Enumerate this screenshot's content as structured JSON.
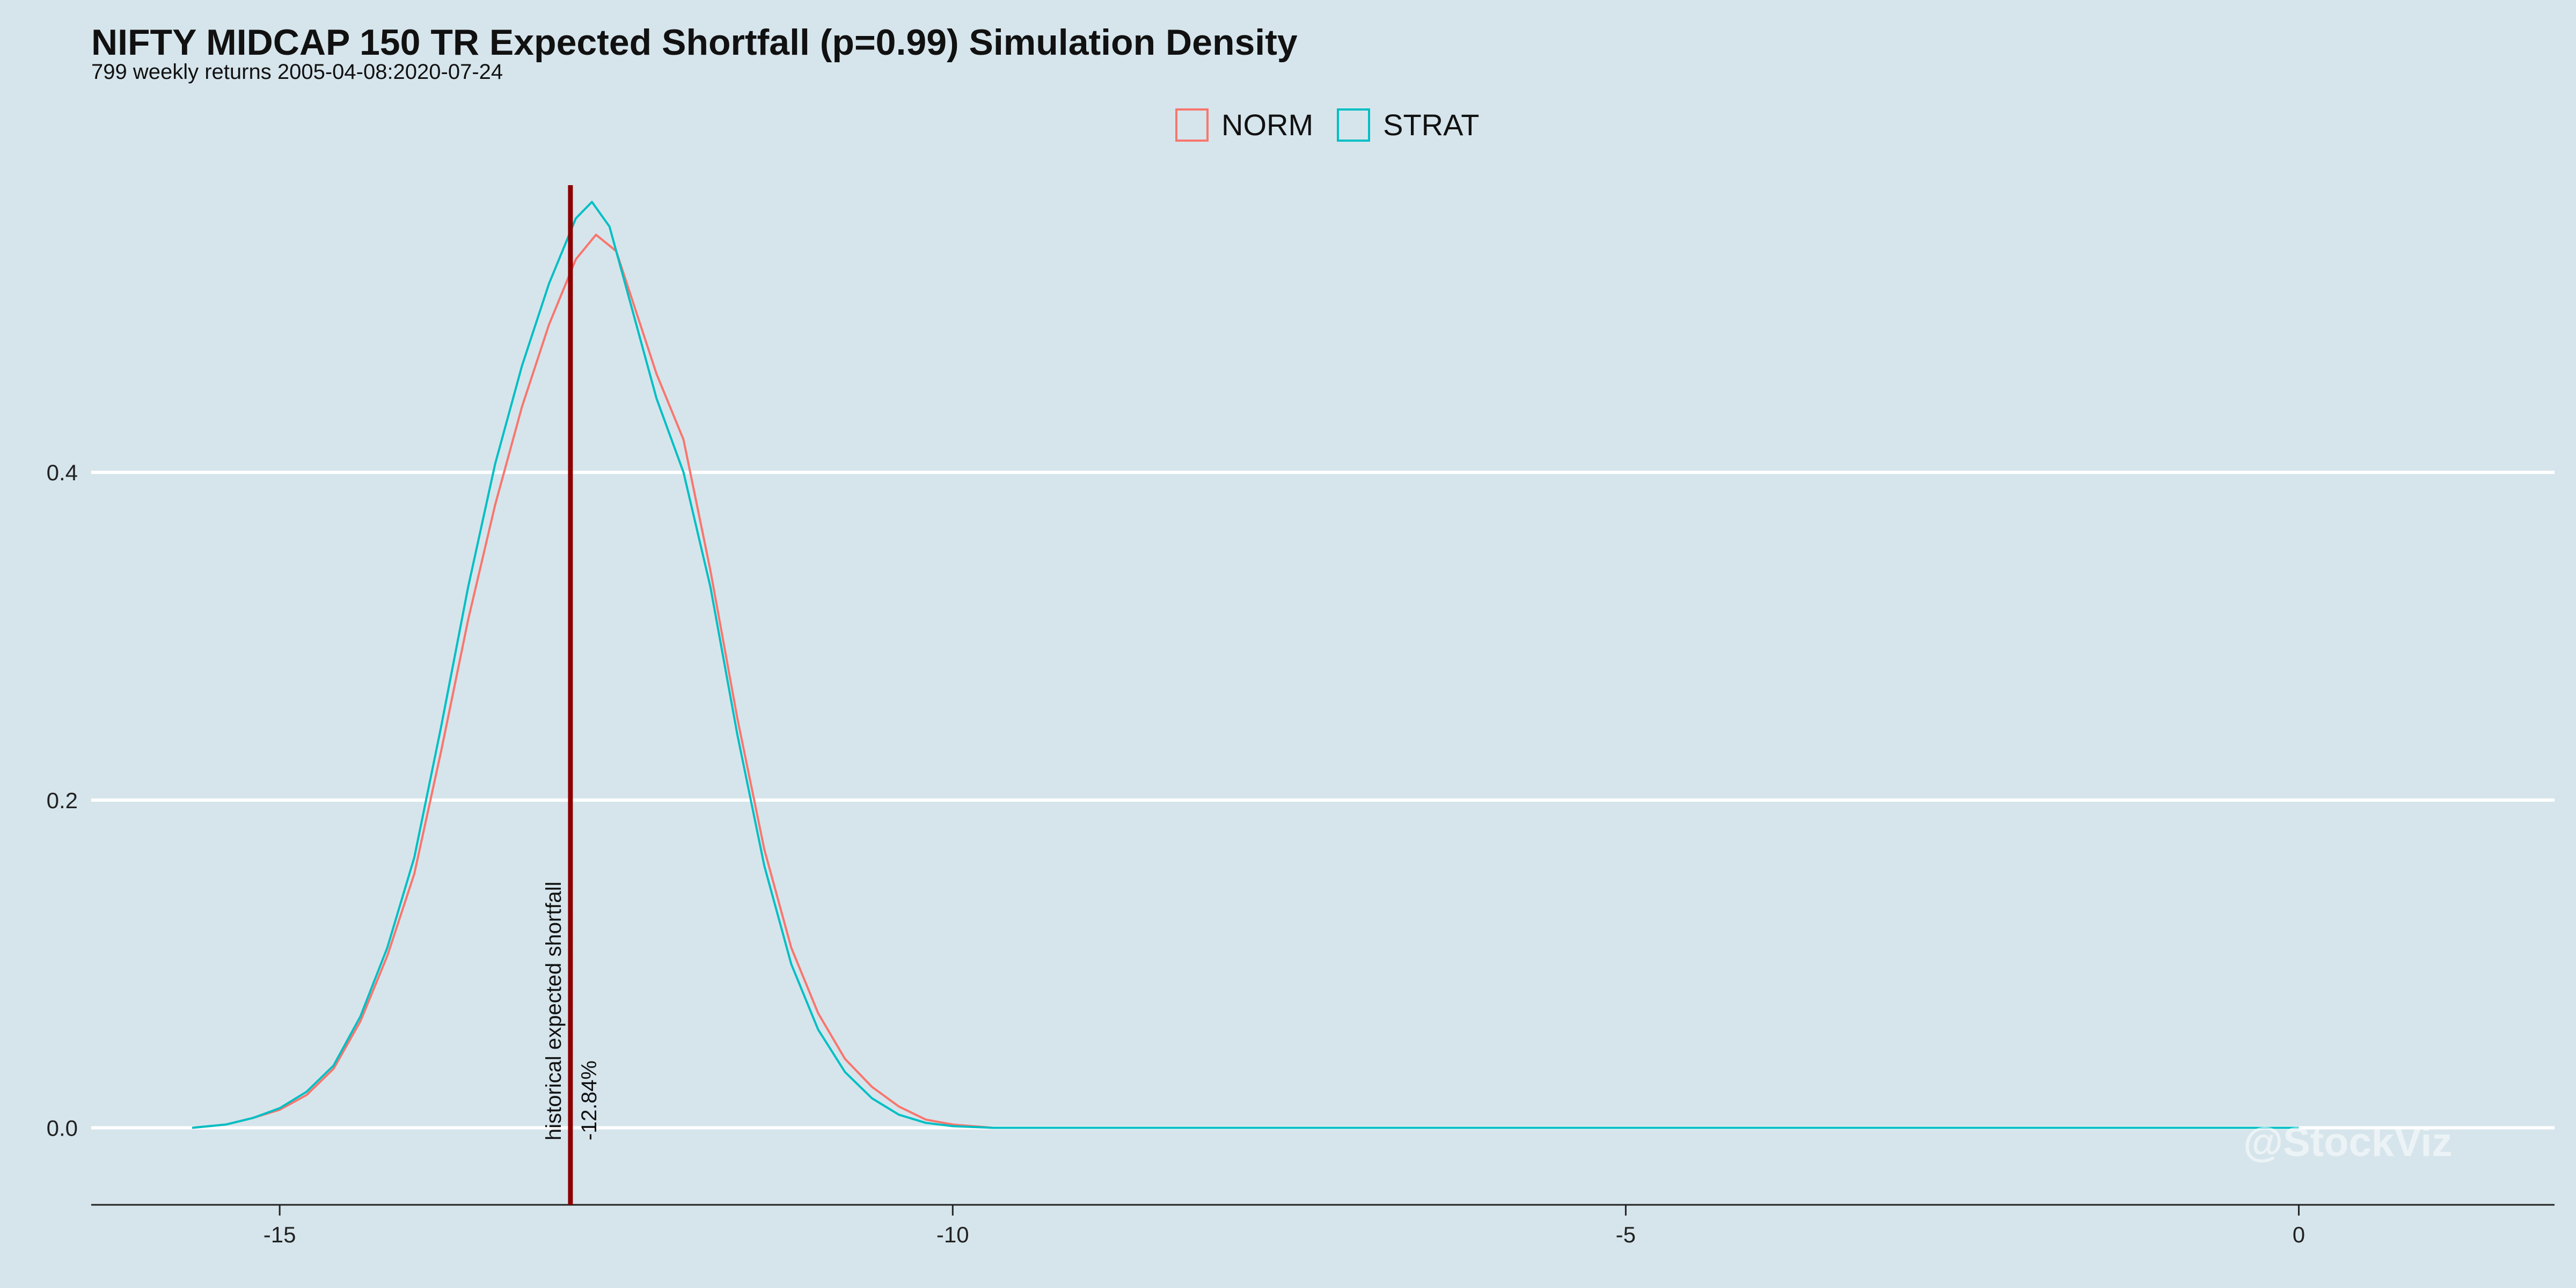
{
  "title": "NIFTY MIDCAP 150 TR Expected Shortfall (p=0.99) Simulation Density",
  "subtitle": "799 weekly returns 2005-04-08:2020-07-24",
  "watermark": "@StockViz",
  "chart_data": {
    "type": "line",
    "xlim": [
      -16.4,
      1.9
    ],
    "ylim": [
      -0.047,
      0.59
    ],
    "x_ticks": [
      -15,
      -10,
      -5,
      0
    ],
    "x_tick_labels": [
      "-15",
      "-10",
      "-5",
      "0"
    ],
    "y_ticks": [
      0.0,
      0.2,
      0.4
    ],
    "y_tick_labels": [
      "0.0",
      "0.2",
      "0.4"
    ],
    "grid": "horizontal-major",
    "legend_position": "top",
    "annotation": {
      "x": -12.84,
      "label": "historical expected shortfall",
      "value_label": "-12.84%",
      "color": "#8b0000"
    },
    "series": [
      {
        "name": "NORM",
        "color": "#f8766d",
        "points": [
          [
            -15.65,
            0.0
          ],
          [
            -15.4,
            0.002
          ],
          [
            -15.2,
            0.006
          ],
          [
            -15.0,
            0.011
          ],
          [
            -14.8,
            0.02
          ],
          [
            -14.6,
            0.036
          ],
          [
            -14.4,
            0.065
          ],
          [
            -14.2,
            0.105
          ],
          [
            -14.0,
            0.155
          ],
          [
            -13.8,
            0.23
          ],
          [
            -13.6,
            0.31
          ],
          [
            -13.4,
            0.38
          ],
          [
            -13.2,
            0.44
          ],
          [
            -13.0,
            0.49
          ],
          [
            -12.8,
            0.53
          ],
          [
            -12.65,
            0.545
          ],
          [
            -12.5,
            0.535
          ],
          [
            -12.4,
            0.51
          ],
          [
            -12.2,
            0.46
          ],
          [
            -12.0,
            0.42
          ],
          [
            -11.8,
            0.34
          ],
          [
            -11.6,
            0.25
          ],
          [
            -11.4,
            0.17
          ],
          [
            -11.2,
            0.11
          ],
          [
            -11.0,
            0.07
          ],
          [
            -10.8,
            0.042
          ],
          [
            -10.6,
            0.025
          ],
          [
            -10.4,
            0.013
          ],
          [
            -10.2,
            0.005
          ],
          [
            -10.0,
            0.002
          ],
          [
            -9.7,
            0.0
          ],
          [
            -8.0,
            0.0
          ],
          [
            -5.0,
            0.0
          ],
          [
            -2.0,
            0.0
          ],
          [
            0.0,
            0.0
          ]
        ]
      },
      {
        "name": "STRAT",
        "color": "#00bfc4",
        "points": [
          [
            -15.65,
            0.0
          ],
          [
            -15.4,
            0.002
          ],
          [
            -15.2,
            0.006
          ],
          [
            -15.0,
            0.012
          ],
          [
            -14.8,
            0.022
          ],
          [
            -14.6,
            0.038
          ],
          [
            -14.4,
            0.068
          ],
          [
            -14.2,
            0.11
          ],
          [
            -14.0,
            0.165
          ],
          [
            -13.8,
            0.245
          ],
          [
            -13.6,
            0.33
          ],
          [
            -13.4,
            0.405
          ],
          [
            -13.2,
            0.465
          ],
          [
            -13.0,
            0.515
          ],
          [
            -12.8,
            0.555
          ],
          [
            -12.68,
            0.565
          ],
          [
            -12.55,
            0.55
          ],
          [
            -12.4,
            0.505
          ],
          [
            -12.2,
            0.445
          ],
          [
            -12.0,
            0.4
          ],
          [
            -11.8,
            0.33
          ],
          [
            -11.6,
            0.24
          ],
          [
            -11.4,
            0.16
          ],
          [
            -11.2,
            0.1
          ],
          [
            -11.0,
            0.06
          ],
          [
            -10.8,
            0.034
          ],
          [
            -10.6,
            0.018
          ],
          [
            -10.4,
            0.008
          ],
          [
            -10.2,
            0.003
          ],
          [
            -10.0,
            0.001
          ],
          [
            -9.7,
            0.0
          ],
          [
            -8.0,
            0.0
          ],
          [
            -5.0,
            0.0
          ],
          [
            -2.0,
            0.0
          ],
          [
            0.0,
            0.0
          ]
        ]
      }
    ]
  }
}
